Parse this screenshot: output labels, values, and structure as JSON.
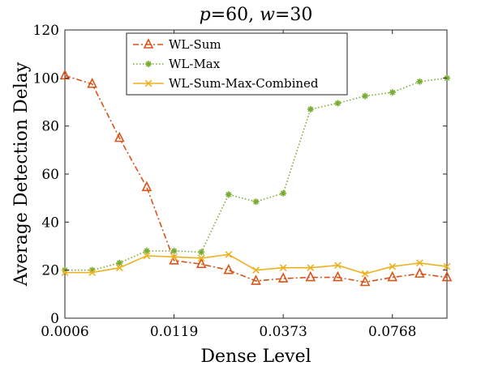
{
  "chart_data": {
    "type": "line",
    "title_parts": [
      {
        "text": "p",
        "italic": true
      },
      {
        "text": "=60, ",
        "italic": false
      },
      {
        "text": "w",
        "italic": true
      },
      {
        "text": "=30",
        "italic": false
      }
    ],
    "xlabel": "Dense Level",
    "ylabel": "Average Detection Delay",
    "ylim": [
      0,
      120
    ],
    "yticks": [
      0,
      20,
      40,
      60,
      80,
      100,
      120
    ],
    "x_index_range": [
      1,
      15
    ],
    "xticks": [
      {
        "index": 1,
        "label": "0.0006"
      },
      {
        "index": 5,
        "label": "0.0119"
      },
      {
        "index": 9,
        "label": "0.0373"
      },
      {
        "index": 13,
        "label": "0.0768"
      }
    ],
    "grid": false,
    "legend_position": "top-center",
    "series": [
      {
        "name": "WL-Sum",
        "color": "#d95319",
        "line_style": "dashdot",
        "marker": "triangle-up",
        "values": [
          101,
          97.5,
          75,
          54.5,
          24,
          22.5,
          20,
          15.5,
          16.5,
          17,
          17,
          15,
          17,
          18.5,
          17
        ]
      },
      {
        "name": "WL-Max",
        "color": "#77ac30",
        "line_style": "dotted",
        "marker": "asterisk",
        "values": [
          20,
          20,
          23,
          28,
          28,
          27.5,
          51.5,
          48.5,
          52,
          87,
          89.5,
          92.5,
          94,
          98.5,
          100
        ]
      },
      {
        "name": "WL-Sum-Max-Combined",
        "color": "#edb120",
        "line_style": "solid",
        "marker": "x",
        "values": [
          19,
          19,
          21,
          26,
          25.5,
          25,
          26.5,
          20,
          21,
          21,
          22,
          18.5,
          21.5,
          23,
          21.5
        ]
      }
    ]
  }
}
